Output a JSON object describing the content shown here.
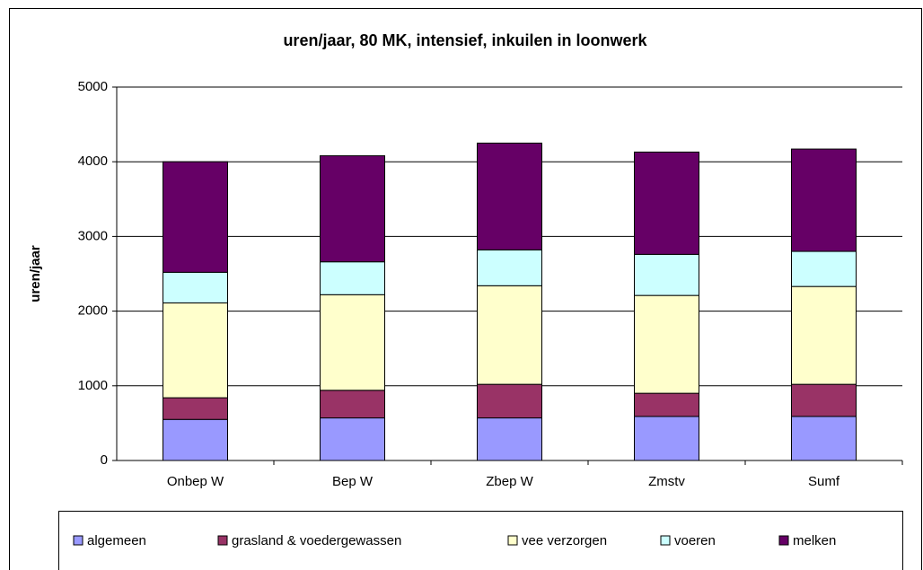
{
  "chart_data": {
    "type": "stacked_bar",
    "title": "uren/jaar, 80 MK, intensief, inkuilen in loonwerk",
    "y_label": "uren/jaar",
    "categories": [
      "Onbep W",
      "Bep W",
      "Zbep W",
      "Zmstv",
      "Sumf"
    ],
    "series": [
      {
        "name": "algemeen",
        "color": "#9999ff",
        "values": [
          550,
          570,
          570,
          590,
          590
        ]
      },
      {
        "name": "grasland & voedergewassen",
        "color": "#993366",
        "values": [
          290,
          370,
          450,
          310,
          430
        ]
      },
      {
        "name": "vee verzorgen",
        "color": "#ffffcc",
        "values": [
          1270,
          1280,
          1320,
          1310,
          1310
        ]
      },
      {
        "name": "voeren",
        "color": "#ccffff",
        "values": [
          410,
          440,
          480,
          550,
          470
        ]
      },
      {
        "name": "melken",
        "color": "#660066",
        "values": [
          1480,
          1420,
          1430,
          1370,
          1370
        ]
      }
    ],
    "ylim": [
      0,
      5000
    ],
    "yticks": [
      0,
      1000,
      2000,
      3000,
      4000,
      5000
    ],
    "grid": true,
    "legend": "bottom"
  }
}
